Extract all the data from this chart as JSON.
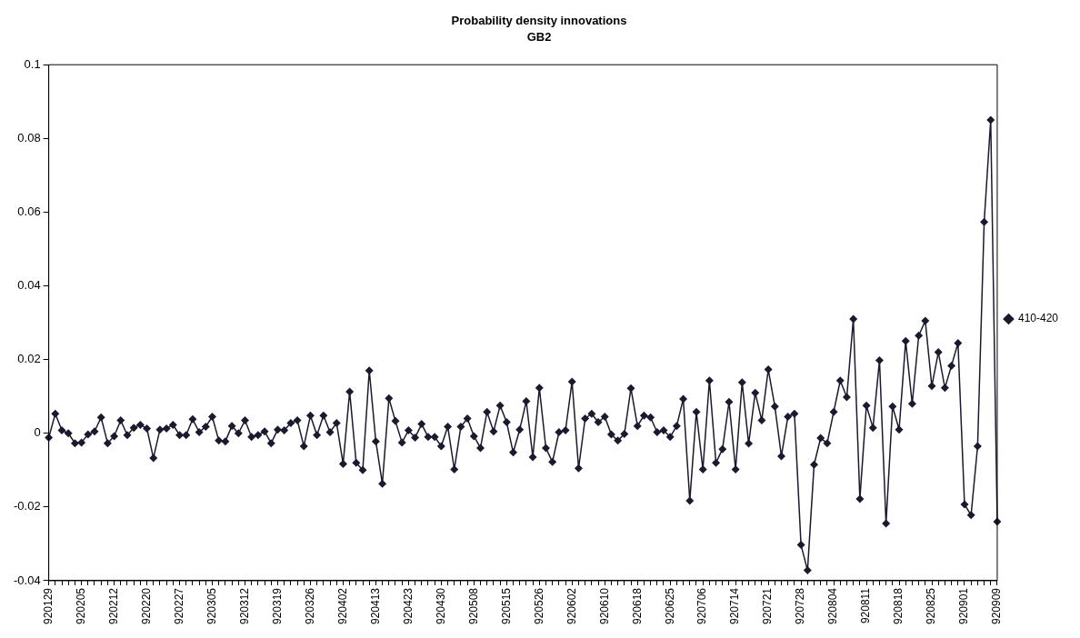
{
  "chart_data": {
    "type": "line",
    "title": "Probability density innovations",
    "subtitle": "GB2",
    "categories": [
      "920129",
      null,
      null,
      null,
      null,
      "920205",
      null,
      null,
      null,
      null,
      "920212",
      null,
      null,
      null,
      null,
      "920220",
      null,
      null,
      null,
      null,
      "920227",
      null,
      null,
      null,
      null,
      "920305",
      null,
      null,
      null,
      null,
      "920312",
      null,
      null,
      null,
      null,
      "920319",
      null,
      null,
      null,
      null,
      "920326",
      null,
      null,
      null,
      null,
      "920402",
      null,
      null,
      null,
      null,
      "920413",
      null,
      null,
      null,
      null,
      "920423",
      null,
      null,
      null,
      null,
      "920430",
      null,
      null,
      null,
      null,
      "920508",
      null,
      null,
      null,
      null,
      "920515",
      null,
      null,
      null,
      null,
      "920526",
      null,
      null,
      null,
      null,
      "920602",
      null,
      null,
      null,
      null,
      "920610",
      null,
      null,
      null,
      null,
      "920618",
      null,
      null,
      null,
      null,
      "920625",
      null,
      null,
      null,
      null,
      "920706",
      null,
      null,
      null,
      null,
      "920714",
      null,
      null,
      null,
      null,
      "920721",
      null,
      null,
      null,
      null,
      "920728",
      null,
      null,
      null,
      null,
      "920804",
      null,
      null,
      null,
      null,
      "920811",
      null,
      null,
      null,
      null,
      "920818",
      null,
      null,
      null,
      null,
      "920825",
      null,
      null,
      null,
      null,
      "920901",
      null,
      null,
      null,
      null,
      "920909"
    ],
    "series": [
      {
        "name": "410-420",
        "color": "#1a1a2e",
        "values": [
          -0.0012,
          0.0053,
          0.0008,
          0.0,
          -0.0027,
          -0.0025,
          -0.0003,
          0.0005,
          0.0043,
          -0.0027,
          -0.0008,
          0.0035,
          -0.0005,
          0.0015,
          0.0023,
          0.0013,
          -0.0067,
          0.001,
          0.0013,
          0.0023,
          -0.0005,
          -0.0005,
          0.0038,
          0.0003,
          0.0018,
          0.0045,
          -0.002,
          -0.0022,
          0.002,
          0.0,
          0.0035,
          -0.001,
          -0.0005,
          0.0005,
          -0.0027,
          0.001,
          0.0008,
          0.0028,
          0.0035,
          -0.0035,
          0.0048,
          -0.0005,
          0.0048,
          0.0003,
          0.0028,
          -0.0083,
          0.0113,
          -0.008,
          -0.01,
          0.017,
          -0.0022,
          -0.0137,
          0.0095,
          0.0033,
          -0.0025,
          0.0008,
          -0.0012,
          0.0025,
          -0.001,
          -0.001,
          -0.0035,
          0.0018,
          -0.0098,
          0.0018,
          0.004,
          -0.0008,
          -0.004,
          0.0058,
          0.0005,
          0.0075,
          0.003,
          -0.0052,
          0.001,
          0.0087,
          -0.0065,
          0.0123,
          -0.004,
          -0.0078,
          0.0003,
          0.0008,
          0.014,
          -0.0095,
          0.004,
          0.0053,
          0.003,
          0.0045,
          -0.0003,
          -0.002,
          -0.0002,
          0.0122,
          0.002,
          0.0048,
          0.0043,
          0.0003,
          0.0008,
          -0.001,
          0.002,
          0.0093,
          -0.0183,
          0.0058,
          -0.0098,
          0.0143,
          -0.008,
          -0.0043,
          0.0085,
          -0.0098,
          0.0138,
          -0.0028,
          0.011,
          0.0035,
          0.0173,
          0.0073,
          -0.0062,
          0.0045,
          0.0053,
          -0.0303,
          -0.0372,
          -0.0085,
          -0.0013,
          -0.0027,
          0.0058,
          0.0143,
          0.0098,
          0.031,
          -0.0178,
          0.0075,
          0.0015,
          0.0198,
          -0.0245,
          0.0073,
          0.001,
          0.025,
          0.008,
          0.0265,
          0.0305,
          0.0128,
          0.022,
          0.0123,
          0.0183,
          0.0245,
          -0.0193,
          -0.0222,
          -0.0035,
          0.0573,
          0.085,
          -0.024
        ]
      }
    ],
    "ylim": [
      -0.04,
      0.1
    ],
    "yticks": [
      -0.04,
      -0.02,
      0,
      0.02,
      0.04,
      0.06,
      0.08,
      0.1
    ],
    "grid": false,
    "legend": "right",
    "marker": "diamond",
    "line_style": "solid"
  }
}
